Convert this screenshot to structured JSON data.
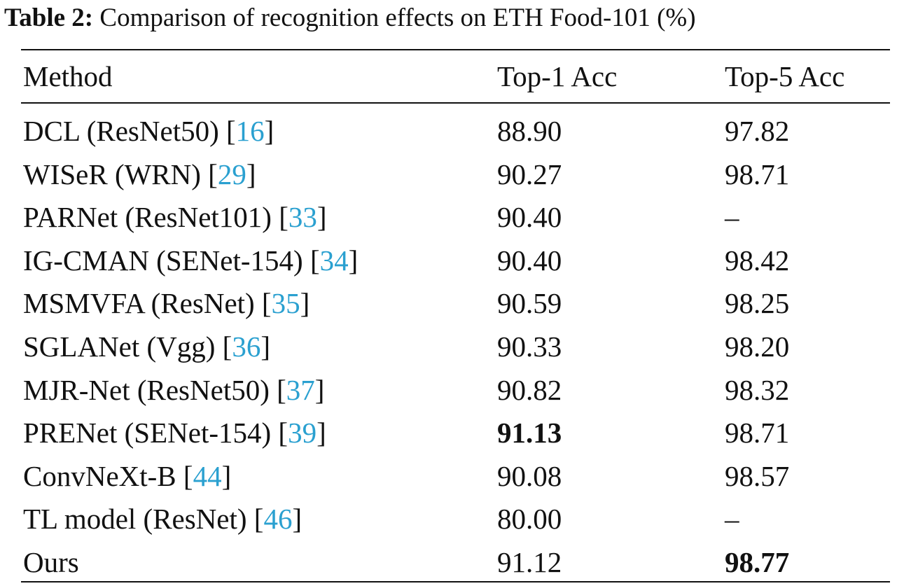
{
  "caption": {
    "label": "Table 2:",
    "text": "Comparison of recognition effects on ETH Food-101 (%)"
  },
  "header": {
    "method": "Method",
    "top1": "Top-1 Acc",
    "top5": "Top-5 Acc"
  },
  "rows": [
    {
      "method": "DCL (ResNet50) [",
      "cite": "16",
      "close": "]",
      "top1": "88.90",
      "top5": "97.82",
      "top1_bold": false,
      "top5_bold": false
    },
    {
      "method": "WISeR (WRN) [",
      "cite": "29",
      "close": "]",
      "top1": "90.27",
      "top5": "98.71",
      "top1_bold": false,
      "top5_bold": false
    },
    {
      "method": "PARNet (ResNet101) [",
      "cite": "33",
      "close": "]",
      "top1": "90.40",
      "top5": "–",
      "top1_bold": false,
      "top5_bold": false
    },
    {
      "method": "IG-CMAN (SENet-154) [",
      "cite": "34",
      "close": "]",
      "top1": "90.40",
      "top5": "98.42",
      "top1_bold": false,
      "top5_bold": false
    },
    {
      "method": "MSMVFA (ResNet) [",
      "cite": "35",
      "close": "]",
      "top1": "90.59",
      "top5": "98.25",
      "top1_bold": false,
      "top5_bold": false
    },
    {
      "method": "SGLANet (Vgg) [",
      "cite": "36",
      "close": "]",
      "top1": "90.33",
      "top5": "98.20",
      "top1_bold": false,
      "top5_bold": false
    },
    {
      "method": "MJR-Net (ResNet50) [",
      "cite": "37",
      "close": "]",
      "top1": "90.82",
      "top5": "98.32",
      "top1_bold": false,
      "top5_bold": false
    },
    {
      "method": "PRENet (SENet-154) [",
      "cite": "39",
      "close": "]",
      "top1": "91.13",
      "top5": "98.71",
      "top1_bold": true,
      "top5_bold": false
    },
    {
      "method": "ConvNeXt-B [",
      "cite": "44",
      "close": "]",
      "top1": "90.08",
      "top5": "98.57",
      "top1_bold": false,
      "top5_bold": false
    },
    {
      "method": "TL model (ResNet) [",
      "cite": "46",
      "close": "]",
      "top1": "80.00",
      "top5": "–",
      "top1_bold": false,
      "top5_bold": false
    },
    {
      "method": "Ours",
      "cite": "",
      "close": "",
      "top1": "91.12",
      "top5": "98.77",
      "top1_bold": false,
      "top5_bold": true
    }
  ]
}
